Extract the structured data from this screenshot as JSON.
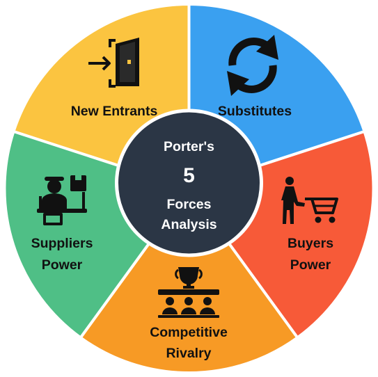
{
  "diagram": {
    "center": {
      "line1": "Porter's",
      "number": "5",
      "line3": "Forces",
      "line4": "Analysis",
      "color": "#2b3645"
    },
    "segments": [
      {
        "id": "new-entrants",
        "lines": [
          "New Entrants"
        ],
        "color": "#fbc440",
        "icon": "door-enter-icon"
      },
      {
        "id": "substitutes",
        "lines": [
          "Substitutes"
        ],
        "color": "#3aa0f0",
        "icon": "sync-arrows-icon"
      },
      {
        "id": "buyers-power",
        "lines": [
          "Buyers",
          "Power"
        ],
        "color": "#f75a38",
        "icon": "shopping-cart-icon"
      },
      {
        "id": "competitive-rivalry",
        "lines": [
          "Competitive",
          "Rivalry"
        ],
        "color": "#f79a25",
        "icon": "trophy-competitors-icon"
      },
      {
        "id": "suppliers-power",
        "lines": [
          "Suppliers",
          "Power"
        ],
        "color": "#4fbf86",
        "icon": "supplier-desk-icon"
      }
    ]
  }
}
